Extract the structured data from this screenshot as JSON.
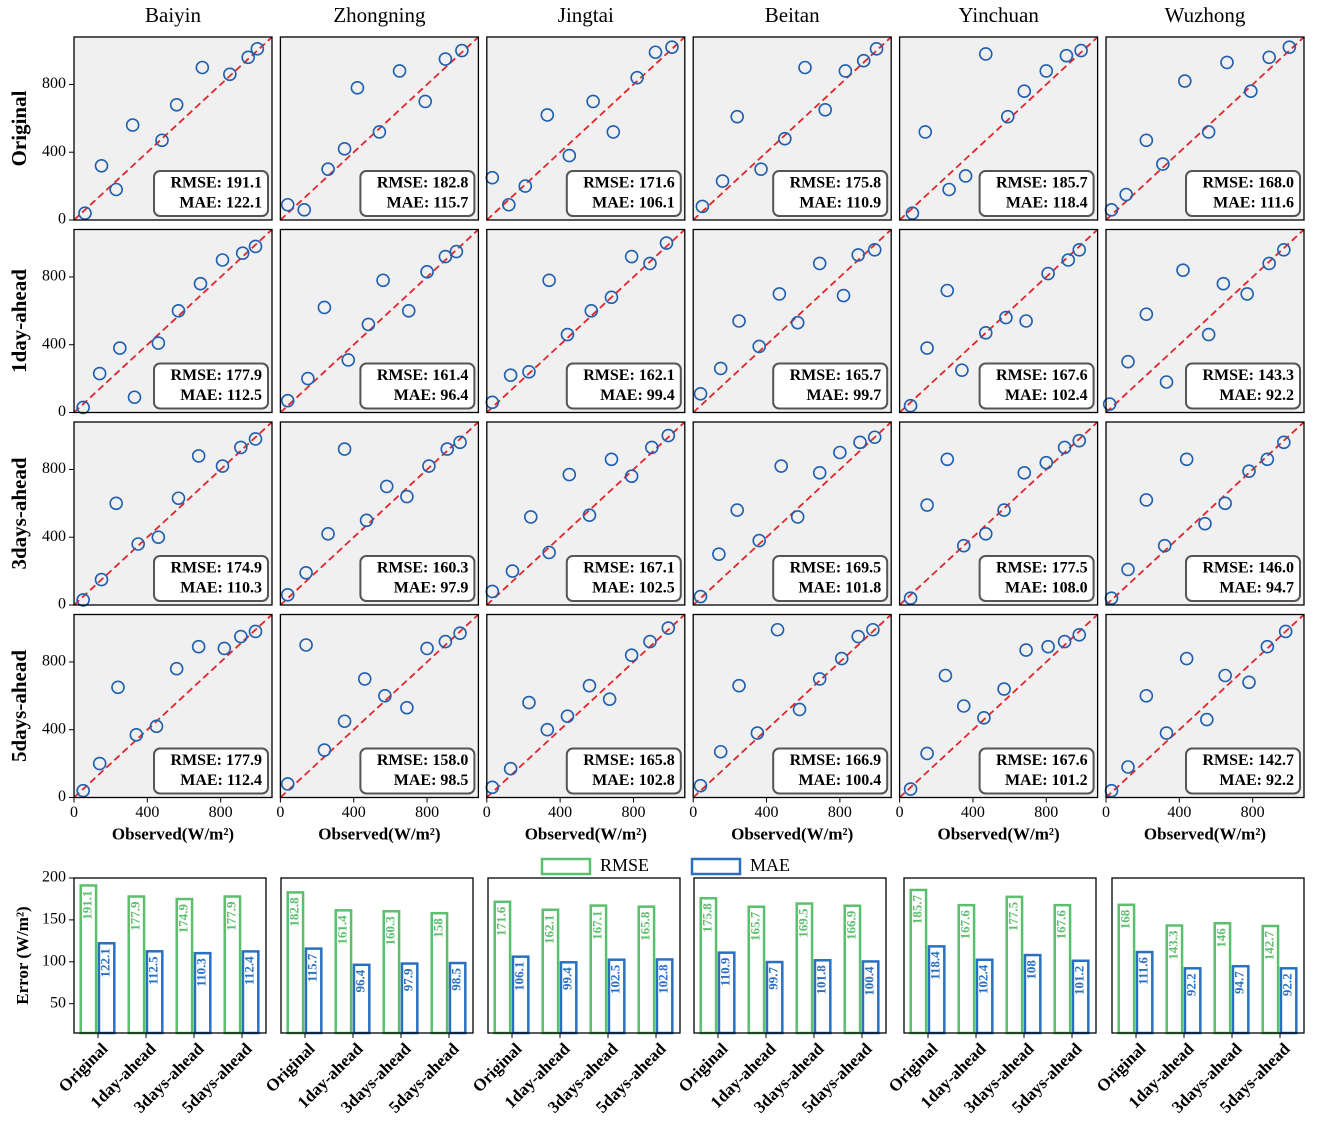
{
  "chart_data": [
    {
      "type": "scatter",
      "title": "Baiyin",
      "ylabel": "Original",
      "xlim": [
        0,
        1080
      ],
      "ylim": [
        0,
        1080
      ],
      "yticks": [
        0,
        400,
        800
      ],
      "annotations": [
        "RMSE: 191.1",
        "MAE: 122.1"
      ],
      "x": [
        60,
        150,
        230,
        320,
        480,
        560,
        700,
        850,
        950,
        1000
      ],
      "y": [
        40,
        320,
        180,
        560,
        470,
        680,
        900,
        860,
        960,
        1010
      ]
    },
    {
      "type": "scatter",
      "title": "Zhongning",
      "xlim": [
        0,
        1080
      ],
      "ylim": [
        0,
        1080
      ],
      "annotations": [
        "RMSE: 182.8",
        "MAE: 115.7"
      ],
      "x": [
        40,
        130,
        260,
        350,
        420,
        540,
        650,
        790,
        900,
        990
      ],
      "y": [
        90,
        60,
        300,
        420,
        780,
        520,
        880,
        700,
        950,
        1000
      ]
    },
    {
      "type": "scatter",
      "title": "Jingtai",
      "xlim": [
        0,
        1080
      ],
      "ylim": [
        0,
        1080
      ],
      "annotations": [
        "RMSE: 171.6",
        "MAE: 106.1"
      ],
      "x": [
        30,
        120,
        210,
        330,
        450,
        580,
        690,
        820,
        920,
        1010
      ],
      "y": [
        250,
        90,
        200,
        620,
        380,
        700,
        520,
        840,
        990,
        1020
      ]
    },
    {
      "type": "scatter",
      "title": "Beitan",
      "xlim": [
        0,
        1080
      ],
      "ylim": [
        0,
        1080
      ],
      "annotations": [
        "RMSE: 175.8",
        "MAE: 110.9"
      ],
      "x": [
        50,
        160,
        240,
        370,
        500,
        610,
        720,
        830,
        930,
        1000
      ],
      "y": [
        80,
        230,
        610,
        300,
        480,
        900,
        650,
        880,
        940,
        1010
      ]
    },
    {
      "type": "scatter",
      "title": "Yinchuan",
      "xlim": [
        0,
        1080
      ],
      "ylim": [
        0,
        1080
      ],
      "annotations": [
        "RMSE: 185.7",
        "MAE: 118.4"
      ],
      "x": [
        70,
        140,
        270,
        360,
        470,
        590,
        680,
        800,
        910,
        990
      ],
      "y": [
        40,
        520,
        180,
        260,
        980,
        610,
        760,
        880,
        970,
        1000
      ]
    },
    {
      "type": "scatter",
      "title": "Wuzhong",
      "xlim": [
        0,
        1080
      ],
      "ylim": [
        0,
        1080
      ],
      "annotations": [
        "RMSE: 168.0",
        "MAE: 111.6"
      ],
      "x": [
        30,
        110,
        220,
        310,
        430,
        560,
        660,
        790,
        890,
        1000
      ],
      "y": [
        60,
        150,
        470,
        330,
        820,
        520,
        930,
        760,
        960,
        1020
      ]
    },
    {
      "type": "scatter",
      "ylabel": "1day-ahead",
      "xlim": [
        0,
        1080
      ],
      "ylim": [
        0,
        1080
      ],
      "yticks": [
        0,
        400,
        800
      ],
      "annotations": [
        "RMSE: 177.9",
        "MAE: 112.5"
      ],
      "x": [
        50,
        140,
        250,
        330,
        460,
        570,
        690,
        810,
        920,
        990
      ],
      "y": [
        30,
        230,
        380,
        90,
        410,
        600,
        760,
        900,
        940,
        980
      ]
    },
    {
      "type": "scatter",
      "xlim": [
        0,
        1080
      ],
      "ylim": [
        0,
        1080
      ],
      "annotations": [
        "RMSE: 161.4",
        "MAE: 96.4"
      ],
      "x": [
        40,
        150,
        240,
        370,
        480,
        560,
        700,
        800,
        900,
        960
      ],
      "y": [
        70,
        200,
        620,
        310,
        520,
        780,
        600,
        830,
        920,
        950
      ]
    },
    {
      "type": "scatter",
      "xlim": [
        0,
        1080
      ],
      "ylim": [
        0,
        1080
      ],
      "annotations": [
        "RMSE: 162.1",
        "MAE: 99.4"
      ],
      "x": [
        30,
        130,
        230,
        340,
        440,
        570,
        680,
        790,
        890,
        980
      ],
      "y": [
        60,
        220,
        240,
        780,
        460,
        600,
        680,
        920,
        880,
        1000
      ]
    },
    {
      "type": "scatter",
      "xlim": [
        0,
        1080
      ],
      "ylim": [
        0,
        1080
      ],
      "annotations": [
        "RMSE: 165.7",
        "MAE: 99.7"
      ],
      "x": [
        40,
        150,
        250,
        360,
        470,
        570,
        690,
        820,
        900,
        990
      ],
      "y": [
        110,
        260,
        540,
        390,
        700,
        530,
        880,
        690,
        930,
        960
      ]
    },
    {
      "type": "scatter",
      "xlim": [
        0,
        1080
      ],
      "ylim": [
        0,
        1080
      ],
      "annotations": [
        "RMSE: 167.6",
        "MAE: 102.4"
      ],
      "x": [
        60,
        150,
        260,
        340,
        470,
        580,
        690,
        810,
        920,
        980
      ],
      "y": [
        40,
        380,
        720,
        250,
        470,
        560,
        540,
        820,
        900,
        960
      ]
    },
    {
      "type": "scatter",
      "xlim": [
        0,
        1080
      ],
      "ylim": [
        0,
        1080
      ],
      "annotations": [
        "RMSE: 143.3",
        "MAE: 92.2"
      ],
      "x": [
        20,
        120,
        220,
        330,
        420,
        560,
        640,
        770,
        890,
        970
      ],
      "y": [
        50,
        300,
        580,
        180,
        840,
        460,
        760,
        700,
        880,
        960
      ]
    },
    {
      "type": "scatter",
      "ylabel": "3days-ahead",
      "xlim": [
        0,
        1080
      ],
      "ylim": [
        0,
        1080
      ],
      "yticks": [
        0,
        400,
        800
      ],
      "annotations": [
        "RMSE: 174.9",
        "MAE: 110.3"
      ],
      "x": [
        50,
        150,
        230,
        350,
        460,
        570,
        680,
        810,
        910,
        990
      ],
      "y": [
        30,
        150,
        600,
        360,
        400,
        630,
        880,
        820,
        930,
        980
      ]
    },
    {
      "type": "scatter",
      "xlim": [
        0,
        1080
      ],
      "ylim": [
        0,
        1080
      ],
      "annotations": [
        "RMSE: 160.3",
        "MAE: 97.9"
      ],
      "x": [
        40,
        140,
        260,
        350,
        470,
        580,
        690,
        810,
        910,
        980
      ],
      "y": [
        60,
        190,
        420,
        920,
        500,
        700,
        640,
        820,
        920,
        960
      ]
    },
    {
      "type": "scatter",
      "xlim": [
        0,
        1080
      ],
      "ylim": [
        0,
        1080
      ],
      "annotations": [
        "RMSE: 167.1",
        "MAE: 102.5"
      ],
      "x": [
        30,
        140,
        240,
        340,
        450,
        560,
        680,
        790,
        900,
        990
      ],
      "y": [
        80,
        200,
        520,
        310,
        770,
        530,
        860,
        760,
        930,
        1000
      ]
    },
    {
      "type": "scatter",
      "xlim": [
        0,
        1080
      ],
      "ylim": [
        0,
        1080
      ],
      "annotations": [
        "RMSE: 169.5",
        "MAE: 101.8"
      ],
      "x": [
        40,
        140,
        240,
        360,
        480,
        570,
        690,
        800,
        910,
        990
      ],
      "y": [
        50,
        300,
        560,
        380,
        820,
        520,
        780,
        900,
        960,
        990
      ]
    },
    {
      "type": "scatter",
      "xlim": [
        0,
        1080
      ],
      "ylim": [
        0,
        1080
      ],
      "annotations": [
        "RMSE: 177.5",
        "MAE: 108.0"
      ],
      "x": [
        60,
        150,
        260,
        350,
        470,
        570,
        680,
        800,
        900,
        980
      ],
      "y": [
        40,
        590,
        860,
        350,
        420,
        560,
        780,
        840,
        930,
        970
      ]
    },
    {
      "type": "scatter",
      "xlim": [
        0,
        1080
      ],
      "ylim": [
        0,
        1080
      ],
      "annotations": [
        "RMSE: 146.0",
        "MAE: 94.7"
      ],
      "x": [
        30,
        120,
        220,
        320,
        440,
        540,
        650,
        780,
        880,
        970
      ],
      "y": [
        40,
        210,
        620,
        350,
        860,
        480,
        600,
        790,
        860,
        960
      ]
    },
    {
      "type": "scatter",
      "ylabel": "5days-ahead",
      "xlabel": "Observed(W/m²)",
      "xlim": [
        0,
        1080
      ],
      "ylim": [
        0,
        1080
      ],
      "xticks": [
        0,
        400,
        800
      ],
      "yticks": [
        0,
        400,
        800
      ],
      "annotations": [
        "RMSE: 177.9",
        "MAE: 112.4"
      ],
      "x": [
        50,
        140,
        240,
        340,
        450,
        560,
        680,
        820,
        910,
        990
      ],
      "y": [
        40,
        200,
        650,
        370,
        420,
        760,
        890,
        880,
        950,
        980
      ]
    },
    {
      "type": "scatter",
      "xlabel": "Observed(W/m²)",
      "xlim": [
        0,
        1080
      ],
      "ylim": [
        0,
        1080
      ],
      "xticks": [
        0,
        400,
        800
      ],
      "annotations": [
        "RMSE: 158.0",
        "MAE: 98.5"
      ],
      "x": [
        40,
        140,
        240,
        350,
        460,
        570,
        690,
        800,
        900,
        980
      ],
      "y": [
        80,
        900,
        280,
        450,
        700,
        600,
        530,
        880,
        920,
        970
      ]
    },
    {
      "type": "scatter",
      "xlabel": "Observed(W/m²)",
      "xlim": [
        0,
        1080
      ],
      "ylim": [
        0,
        1080
      ],
      "xticks": [
        0,
        400,
        800
      ],
      "annotations": [
        "RMSE: 165.8",
        "MAE: 102.8"
      ],
      "x": [
        30,
        130,
        230,
        330,
        440,
        560,
        670,
        790,
        890,
        990
      ],
      "y": [
        60,
        170,
        560,
        400,
        480,
        660,
        580,
        840,
        920,
        1000
      ]
    },
    {
      "type": "scatter",
      "xlabel": "Observed(W/m²)",
      "xlim": [
        0,
        1080
      ],
      "ylim": [
        0,
        1080
      ],
      "xticks": [
        0,
        400,
        800
      ],
      "annotations": [
        "RMSE: 166.9",
        "MAE: 100.4"
      ],
      "x": [
        40,
        150,
        250,
        350,
        460,
        580,
        690,
        810,
        900,
        980
      ],
      "y": [
        70,
        270,
        660,
        380,
        990,
        520,
        700,
        820,
        950,
        990
      ]
    },
    {
      "type": "scatter",
      "xlabel": "Observed(W/m²)",
      "xlim": [
        0,
        1080
      ],
      "ylim": [
        0,
        1080
      ],
      "xticks": [
        0,
        400,
        800
      ],
      "annotations": [
        "RMSE: 167.6",
        "MAE: 101.2"
      ],
      "x": [
        60,
        150,
        250,
        350,
        460,
        570,
        690,
        810,
        900,
        980
      ],
      "y": [
        50,
        260,
        720,
        540,
        470,
        640,
        870,
        890,
        920,
        960
      ]
    },
    {
      "type": "scatter",
      "xlabel": "Observed(W/m²)",
      "xlim": [
        0,
        1080
      ],
      "ylim": [
        0,
        1080
      ],
      "xticks": [
        0,
        400,
        800
      ],
      "annotations": [
        "RMSE: 142.7",
        "MAE: 92.2"
      ],
      "x": [
        30,
        120,
        220,
        330,
        440,
        550,
        650,
        780,
        880,
        980
      ],
      "y": [
        40,
        180,
        600,
        380,
        820,
        460,
        720,
        680,
        890,
        980
      ]
    },
    {
      "type": "bar",
      "ylabel": "Error (W/m²)",
      "ylim": [
        15,
        200
      ],
      "yticks": [
        50,
        100,
        150,
        200
      ],
      "categories": [
        "Original",
        "1day-ahead",
        "3days-ahead",
        "5days-ahead"
      ],
      "series": [
        {
          "color": "#5cbf6e",
          "values": [
            191.1,
            177.9,
            174.9,
            177.9
          ]
        },
        {
          "color": "#2a6fc0",
          "values": [
            122.1,
            112.5,
            110.3,
            112.4
          ]
        }
      ]
    },
    {
      "type": "bar",
      "ylim": [
        15,
        200
      ],
      "categories": [
        "Original",
        "1day-ahead",
        "3days-ahead",
        "5days-ahead"
      ],
      "series": [
        {
          "color": "#5cbf6e",
          "values": [
            182.8,
            161.4,
            160.3,
            158.0
          ]
        },
        {
          "color": "#2a6fc0",
          "values": [
            115.7,
            96.4,
            97.9,
            98.5
          ]
        }
      ]
    },
    {
      "type": "bar",
      "ylim": [
        15,
        200
      ],
      "legend": "top",
      "categories": [
        "Original",
        "1day-ahead",
        "3days-ahead",
        "5days-ahead"
      ],
      "series": [
        {
          "name": "RMSE",
          "color": "#5cbf6e",
          "values": [
            171.6,
            162.1,
            167.1,
            165.8
          ]
        },
        {
          "name": "MAE",
          "color": "#2a6fc0",
          "values": [
            106.1,
            99.4,
            102.5,
            102.8
          ]
        }
      ]
    },
    {
      "type": "bar",
      "ylim": [
        15,
        200
      ],
      "categories": [
        "Original",
        "1day-ahead",
        "3days-ahead",
        "5days-ahead"
      ],
      "series": [
        {
          "color": "#5cbf6e",
          "values": [
            175.8,
            165.7,
            169.5,
            166.9
          ]
        },
        {
          "color": "#2a6fc0",
          "values": [
            110.9,
            99.7,
            101.8,
            100.4
          ]
        }
      ]
    },
    {
      "type": "bar",
      "ylim": [
        15,
        200
      ],
      "categories": [
        "Original",
        "1day-ahead",
        "3days-ahead",
        "5days-ahead"
      ],
      "series": [
        {
          "color": "#5cbf6e",
          "values": [
            185.7,
            167.6,
            177.5,
            167.6
          ]
        },
        {
          "color": "#2a6fc0",
          "values": [
            118.4,
            102.4,
            108.0,
            101.2
          ]
        }
      ]
    },
    {
      "type": "bar",
      "ylim": [
        15,
        200
      ],
      "categories": [
        "Original",
        "1day-ahead",
        "3days-ahead",
        "5days-ahead"
      ],
      "series": [
        {
          "color": "#5cbf6e",
          "values": [
            168.0,
            143.3,
            146.0,
            142.7
          ]
        },
        {
          "color": "#2a6fc0",
          "values": [
            111.6,
            92.2,
            94.7,
            92.2
          ]
        }
      ]
    }
  ]
}
